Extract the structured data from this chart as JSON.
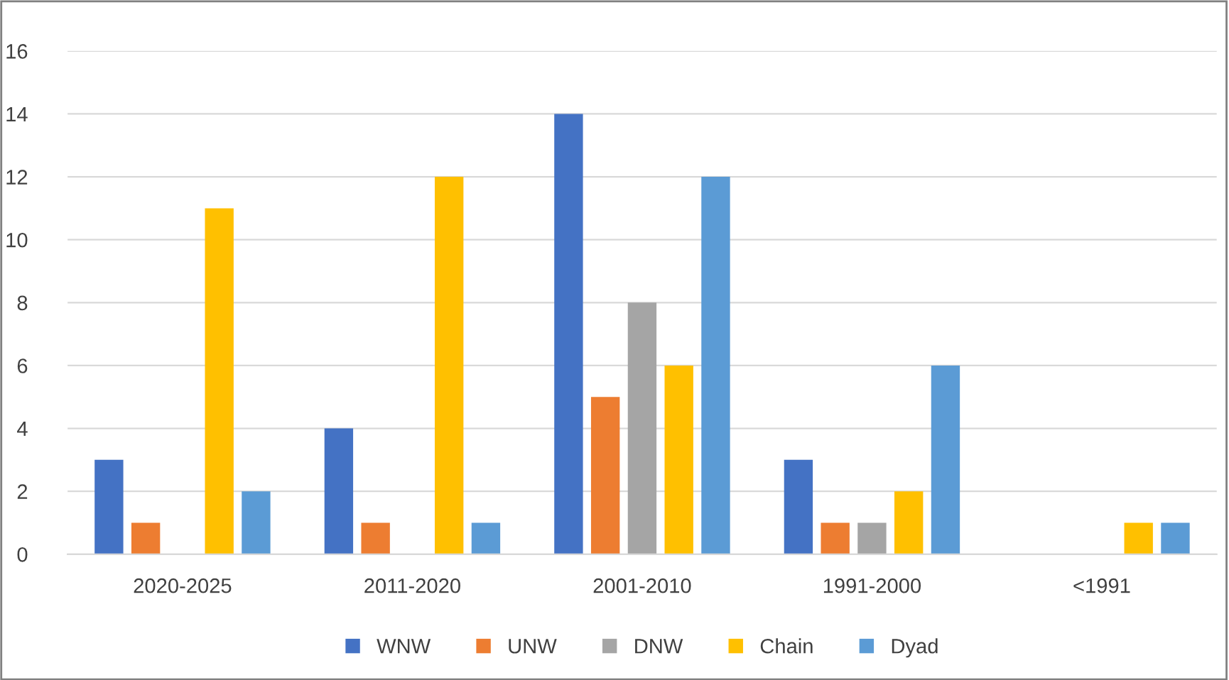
{
  "chart_data": {
    "type": "bar",
    "categories": [
      "2020-2025",
      "2011-2020",
      "2001-2010",
      "1991-2000",
      "<1991"
    ],
    "series": [
      {
        "name": "WNW",
        "color": "#4472c4",
        "values": [
          3,
          4,
          14,
          3,
          0
        ]
      },
      {
        "name": "UNW",
        "color": "#ed7d31",
        "values": [
          1,
          1,
          5,
          1,
          0
        ]
      },
      {
        "name": "DNW",
        "color": "#a5a5a5",
        "values": [
          0,
          0,
          8,
          1,
          0
        ]
      },
      {
        "name": "Chain",
        "color": "#ffc000",
        "values": [
          11,
          12,
          6,
          2,
          1
        ]
      },
      {
        "name": "Dyad",
        "color": "#5b9bd5",
        "values": [
          2,
          1,
          12,
          6,
          1
        ]
      }
    ],
    "ylim": [
      0,
      16
    ],
    "yticks": [
      0,
      2,
      4,
      6,
      8,
      10,
      12,
      14,
      16
    ],
    "grid": "y",
    "legend": "bottom"
  }
}
